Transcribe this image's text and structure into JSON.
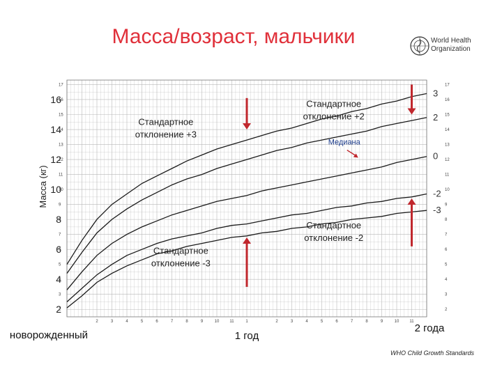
{
  "title": "Масса/возраст, мальчики",
  "logo_text": [
    "World Health",
    "Organization"
  ],
  "footer": "WHO Child Growth Standards",
  "colors": {
    "title": "#e0303a",
    "arrow": "#c0272d",
    "curve": "#1a1a1a",
    "grid": "#b8b8b8"
  },
  "chart_data": {
    "type": "line",
    "ylabel": "Масса (кг)",
    "ylim": [
      1.5,
      17.3
    ],
    "xlim": [
      0,
      24
    ],
    "y_ticks": [
      2,
      4,
      6,
      8,
      10,
      12,
      14,
      16
    ],
    "y_tick_labels": [
      "2",
      "4",
      "6",
      "8",
      "10",
      "12",
      "14",
      "16"
    ],
    "small_ticks_left": [
      "17",
      "16",
      "15",
      "14",
      "13",
      "12",
      "11",
      "10",
      "9",
      "8",
      "7",
      "6",
      "5",
      "4",
      "3",
      "2"
    ],
    "small_ticks_right": [
      "17",
      "16",
      "15",
      "14",
      "13",
      "12",
      "11",
      "10",
      "9",
      "8",
      "7",
      "6",
      "5",
      "4",
      "3",
      "2"
    ],
    "month_ticks": [
      "2",
      "3",
      "4",
      "5",
      "6",
      "7",
      "8",
      "9",
      "10",
      "11",
      "1",
      "2",
      "3",
      "4",
      "5",
      "6",
      "7",
      "8",
      "9",
      "10",
      "11"
    ],
    "month_tick_values": [
      2,
      3,
      4,
      5,
      6,
      7,
      8,
      9,
      10,
      11,
      12,
      14,
      15,
      16,
      17,
      18,
      19,
      20,
      21,
      22,
      23
    ],
    "x_labels": [
      {
        "text": "новорожденный",
        "x": 0
      },
      {
        "text": "1 год",
        "x": 12
      },
      {
        "text": "2 года",
        "x": 24
      }
    ],
    "x": [
      0,
      1,
      2,
      3,
      4,
      5,
      6,
      7,
      8,
      9,
      10,
      11,
      12,
      13,
      14,
      15,
      16,
      17,
      18,
      19,
      20,
      21,
      22,
      23,
      24
    ],
    "series": [
      {
        "name": "3",
        "values": [
          5.0,
          6.6,
          8.0,
          9.0,
          9.7,
          10.4,
          10.9,
          11.4,
          11.9,
          12.3,
          12.7,
          13.0,
          13.3,
          13.6,
          13.9,
          14.1,
          14.4,
          14.7,
          14.9,
          15.2,
          15.4,
          15.7,
          15.9,
          16.2,
          16.4
        ]
      },
      {
        "name": "2",
        "values": [
          4.4,
          5.8,
          7.1,
          8.0,
          8.7,
          9.3,
          9.8,
          10.3,
          10.7,
          11.0,
          11.4,
          11.7,
          12.0,
          12.3,
          12.6,
          12.8,
          13.1,
          13.3,
          13.5,
          13.7,
          13.9,
          14.2,
          14.4,
          14.6,
          14.8
        ]
      },
      {
        "name": "0",
        "values": [
          3.3,
          4.5,
          5.6,
          6.4,
          7.0,
          7.5,
          7.9,
          8.3,
          8.6,
          8.9,
          9.2,
          9.4,
          9.6,
          9.9,
          10.1,
          10.3,
          10.5,
          10.7,
          10.9,
          11.1,
          11.3,
          11.5,
          11.8,
          12.0,
          12.2
        ]
      },
      {
        "name": "-2",
        "values": [
          2.5,
          3.4,
          4.3,
          5.0,
          5.6,
          6.0,
          6.4,
          6.7,
          6.9,
          7.1,
          7.4,
          7.6,
          7.7,
          7.9,
          8.1,
          8.3,
          8.4,
          8.6,
          8.8,
          8.9,
          9.1,
          9.2,
          9.4,
          9.5,
          9.7
        ]
      },
      {
        "name": "-3",
        "values": [
          2.1,
          2.9,
          3.8,
          4.4,
          4.9,
          5.3,
          5.7,
          5.9,
          6.2,
          6.4,
          6.6,
          6.8,
          6.9,
          7.1,
          7.2,
          7.4,
          7.5,
          7.7,
          7.8,
          8.0,
          8.1,
          8.2,
          8.4,
          8.5,
          8.6
        ]
      }
    ],
    "annotations": [
      {
        "text": [
          "Стандартное",
          "отклонение +2"
        ],
        "x": 17.8,
        "y": 15.5
      },
      {
        "text": [
          "Стандартное",
          "отклонение +3"
        ],
        "x": 6.6,
        "y": 14.3
      },
      {
        "text": [
          "Медиана"
        ],
        "x": 18.5,
        "y": 13.0
      },
      {
        "text": [
          "Стандартное",
          "отклонение -2"
        ],
        "x": 17.8,
        "y": 7.4
      },
      {
        "text": [
          "Стандартное",
          "отклонение -3"
        ],
        "x": 7.6,
        "y": 5.7
      }
    ],
    "arrows": [
      {
        "x": 12,
        "from": 16.1,
        "to": 14.0
      },
      {
        "x": 23,
        "from": 17.0,
        "to": 15.0
      },
      {
        "x": 12,
        "from": 3.5,
        "to": 6.8
      },
      {
        "x": 23,
        "from": 6.2,
        "to": 9.4
      }
    ]
  }
}
